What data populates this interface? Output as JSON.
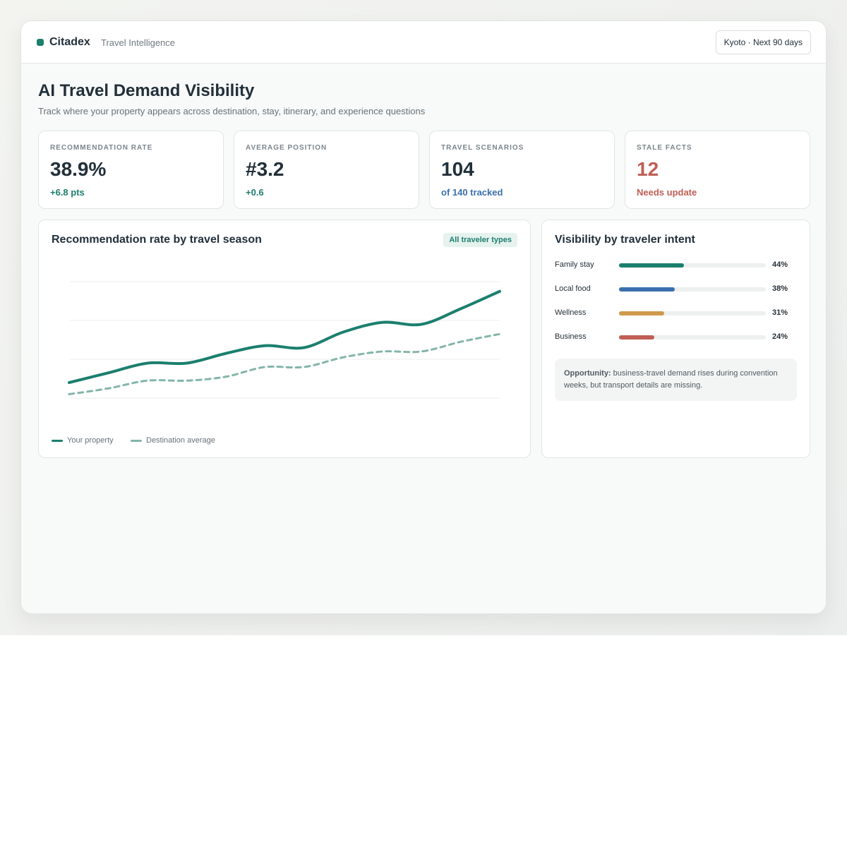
{
  "header": {
    "brand": "Citadex",
    "subtitle": "Travel Intelligence",
    "filter": "Kyoto · Next 90 days"
  },
  "page": {
    "title": "AI Travel Demand Visibility",
    "description": "Track where your property appears across destination, stay, itinerary, and experience questions"
  },
  "kpis": [
    {
      "label": "RECOMMENDATION RATE",
      "value": "38.9%",
      "change": "+6.8 pts"
    },
    {
      "label": "AVERAGE POSITION",
      "value": "#3.2",
      "change": "+0.6"
    },
    {
      "label": "TRAVEL SCENARIOS",
      "value": "104",
      "change": "of 140 tracked"
    },
    {
      "label": "STALE FACTS",
      "value": "12",
      "change": "Needs update"
    }
  ],
  "chart_data": [
    {
      "type": "line",
      "title": "Recommendation rate by travel season",
      "badge": "All traveler types",
      "categories": [
        null,
        null,
        null,
        null,
        null,
        null,
        null,
        null,
        null,
        null,
        null,
        null
      ],
      "ylim": [
        0,
        60
      ],
      "grid": true,
      "series": [
        {
          "name": "Your property",
          "color": "#1b7f6e",
          "dashed": false,
          "values": [
            8,
            13,
            18,
            18,
            23,
            27,
            26,
            34,
            39,
            38,
            46,
            55
          ]
        },
        {
          "name": "Destination average",
          "color": "#84b5aa",
          "dashed": true,
          "values": [
            2,
            5,
            9,
            9,
            11,
            16,
            16,
            21,
            24,
            24,
            29,
            33
          ]
        }
      ]
    },
    {
      "type": "bar",
      "orientation": "horizontal",
      "title": "Visibility by traveler intent",
      "categories": [
        "Family stay",
        "Local food",
        "Wellness",
        "Business"
      ],
      "values": [
        44,
        38,
        31,
        24
      ],
      "value_labels": [
        "44%",
        "38%",
        "31%",
        "24%"
      ],
      "colors": [
        "#1b7f6e",
        "#3a6fad",
        "#cf9a4c",
        "#bf5e54"
      ],
      "xlim": [
        0,
        100
      ]
    }
  ],
  "opportunity": {
    "label": "Opportunity:",
    "text": "business-travel demand rises during convention weeks, but transport details are missing."
  }
}
